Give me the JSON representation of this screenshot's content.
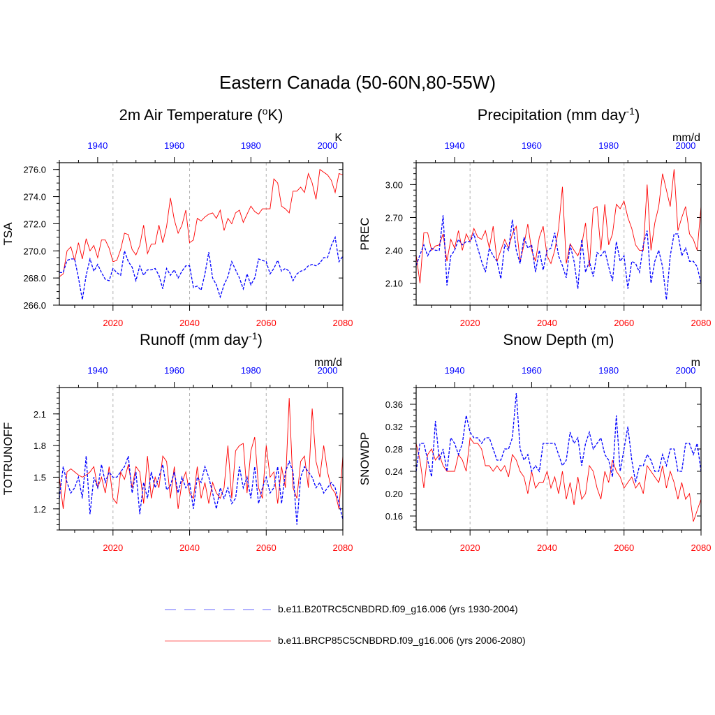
{
  "page": {
    "title": "Eastern Canada (50-60N,80-55W)",
    "colors": {
      "rcp": "#ff0000",
      "hist": "#0000ff",
      "grid": "#aaaaaa",
      "axis": "#000000"
    }
  },
  "legend": {
    "hist_label": "b.e11.B20TRC5CNBDRD.f09_g16.006 (yrs 1930-2004)",
    "rcp_label": "b.e11.BRCP85C5CNBDRD.f09_g16.006 (yrs 2006-2080)"
  },
  "chart_data": [
    {
      "id": "tsa",
      "type": "line",
      "title": "2m Air Temperature (",
      "title_sup": "o",
      "title_tail": "K)",
      "ylabel": "TSA",
      "units": "K",
      "ylim": [
        266.0,
        276.5
      ],
      "yticks": [
        266,
        268,
        270,
        272,
        274,
        276
      ],
      "ytick_labels": [
        "266.0",
        "268.0",
        "270.0",
        "272.0",
        "274.0",
        "276.0"
      ],
      "minor_step": 0.5,
      "x_bottom": {
        "lim": [
          2006,
          2080
        ],
        "ticks": [
          2020,
          2040,
          2060,
          2080
        ]
      },
      "x_top": {
        "lim": [
          1930,
          2004
        ],
        "ticks": [
          1940,
          1960,
          1980,
          2000
        ]
      },
      "series": [
        {
          "name": "b.e11.BRCP85C5CNBDRD.f09_g16.006",
          "color": "#ff0000",
          "dash": "",
          "start": 2006,
          "values": [
            268.1,
            268.3,
            270.0,
            270.3,
            269.3,
            270.6,
            269.4,
            270.9,
            270.0,
            270.4,
            269.5,
            270.8,
            270.8,
            270.2,
            269.2,
            269.3,
            270.1,
            271.3,
            271.2,
            270.1,
            269.7,
            270.4,
            271.9,
            269.8,
            270.5,
            270.5,
            271.9,
            270.6,
            271.8,
            273.9,
            272.3,
            271.3,
            271.9,
            273.0,
            270.6,
            270.8,
            272.4,
            272.2,
            272.5,
            272.7,
            272.8,
            272.4,
            273.0,
            271.5,
            272.4,
            272.0,
            272.8,
            273.0,
            272.1,
            272.7,
            273.3,
            272.9,
            272.7,
            273.1,
            273.1,
            273.1,
            275.3,
            275.0,
            273.3,
            273.1,
            272.8,
            274.4,
            274.4,
            274.7,
            274.3,
            275.7,
            275.0,
            273.8,
            276.0,
            275.8,
            275.6,
            275.2,
            274.3,
            275.7,
            275.6
          ]
        },
        {
          "name": "b.e11.B20TRC5CNBDRD.f09_g16.006",
          "color": "#0000ff",
          "dash": "4,2",
          "start": 1930,
          "values": [
            268.4,
            268.4,
            269.3,
            269.4,
            269.4,
            268.0,
            266.4,
            268.2,
            269.4,
            268.5,
            269.0,
            268.4,
            267.9,
            267.8,
            268.7,
            268.4,
            268.2,
            270.0,
            269.2,
            268.8,
            267.8,
            268.9,
            268.2,
            268.6,
            268.6,
            268.7,
            268.2,
            267.2,
            268.7,
            268.2,
            268.6,
            268.0,
            268.5,
            268.9,
            268.9,
            267.3,
            267.4,
            267.1,
            268.3,
            269.9,
            268.0,
            267.5,
            266.6,
            267.5,
            268.1,
            269.2,
            268.6,
            268.0,
            267.2,
            268.3,
            267.5,
            268.0,
            269.4,
            269.3,
            269.2,
            268.3,
            268.7,
            269.3,
            268.5,
            268.7,
            268.5,
            267.8,
            268.3,
            268.5,
            268.6,
            268.9,
            269.0,
            268.9,
            269.1,
            269.5,
            269.5,
            270.4,
            271.0,
            269.2,
            269.6
          ]
        }
      ]
    },
    {
      "id": "prec",
      "type": "line",
      "title": "Precipitation (mm day",
      "title_sup": "-1",
      "title_tail": ")",
      "ylabel": "PREC",
      "units": "mm/d",
      "ylim": [
        1.9,
        3.2
      ],
      "yticks": [
        2.1,
        2.4,
        2.7,
        3.0
      ],
      "ytick_labels": [
        "2.10",
        "2.40",
        "2.70",
        "3.00"
      ],
      "minor_step": 0.05,
      "x_bottom": {
        "lim": [
          2006,
          2080
        ],
        "ticks": [
          2020,
          2040,
          2060,
          2080
        ]
      },
      "x_top": {
        "lim": [
          1930,
          2004
        ],
        "ticks": [
          1940,
          1960,
          1980,
          2000
        ]
      },
      "series": [
        {
          "name": "b.e11.BRCP85C5CNBDRD.f09_g16.006",
          "color": "#ff0000",
          "dash": "",
          "start": 2006,
          "values": [
            2.36,
            2.1,
            2.56,
            2.56,
            2.4,
            2.44,
            2.45,
            2.55,
            2.3,
            2.5,
            2.42,
            2.58,
            2.4,
            2.55,
            2.48,
            2.6,
            2.52,
            2.5,
            2.58,
            2.42,
            2.62,
            2.3,
            2.4,
            2.5,
            2.42,
            2.55,
            2.62,
            2.3,
            2.45,
            2.64,
            2.4,
            2.3,
            2.52,
            2.62,
            2.35,
            2.28,
            2.4,
            2.6,
            2.98,
            2.28,
            2.46,
            2.4,
            2.35,
            2.45,
            2.65,
            2.25,
            2.78,
            2.8,
            2.4,
            2.82,
            2.45,
            2.55,
            2.82,
            2.78,
            2.85,
            2.7,
            2.6,
            2.45,
            2.4,
            2.4,
            3.0,
            2.4,
            2.65,
            2.8,
            3.1,
            2.95,
            2.8,
            3.14,
            2.58,
            2.7,
            2.8,
            2.55,
            2.5,
            2.4,
            2.8
          ]
        },
        {
          "name": "b.e11.B20TRC5CNBDRD.f09_g16.006",
          "color": "#0000ff",
          "dash": "4,2",
          "start": 1930,
          "values": [
            2.26,
            2.36,
            2.45,
            2.35,
            2.42,
            2.4,
            2.4,
            2.72,
            2.08,
            2.35,
            2.4,
            2.5,
            2.45,
            2.48,
            2.48,
            2.55,
            2.42,
            2.3,
            2.2,
            2.42,
            2.35,
            2.3,
            2.14,
            2.45,
            2.4,
            2.68,
            2.4,
            2.28,
            2.52,
            2.42,
            2.45,
            2.2,
            2.4,
            2.22,
            2.4,
            2.42,
            2.56,
            2.35,
            2.26,
            2.15,
            2.45,
            2.3,
            2.05,
            2.5,
            2.2,
            2.3,
            2.16,
            2.38,
            2.35,
            2.4,
            2.25,
            2.12,
            2.48,
            2.3,
            2.35,
            2.05,
            2.3,
            2.28,
            2.2,
            2.45,
            2.58,
            2.1,
            2.3,
            2.4,
            2.25,
            1.95,
            2.35,
            2.55,
            2.55,
            2.35,
            2.42,
            2.3,
            2.3,
            2.25,
            2.1
          ]
        }
      ]
    },
    {
      "id": "runoff",
      "type": "line",
      "title": "Runoff (mm day",
      "title_sup": "-1",
      "title_tail": ")",
      "ylabel": "TOTRUNOFF",
      "units": "mm/d",
      "ylim": [
        1.0,
        2.35
      ],
      "yticks": [
        1.2,
        1.5,
        1.8,
        2.1
      ],
      "ytick_labels": [
        "1.2",
        "1.5",
        "1.8",
        "2.1"
      ],
      "minor_step": 0.05,
      "x_bottom": {
        "lim": [
          2006,
          2080
        ],
        "ticks": [
          2020,
          2040,
          2060,
          2080
        ]
      },
      "x_top": {
        "lim": [
          1930,
          2004
        ],
        "ticks": [
          1940,
          1960,
          1980,
          2000
        ]
      },
      "series": [
        {
          "name": "b.e11.BRCP85C5CNBDRD.f09_g16.006",
          "color": "#ff0000",
          "dash": "",
          "start": 2006,
          "values": [
            1.5,
            1.2,
            1.55,
            1.58,
            1.55,
            1.52,
            1.5,
            1.52,
            1.55,
            1.6,
            1.4,
            1.5,
            1.35,
            1.6,
            1.3,
            1.25,
            1.55,
            1.48,
            1.62,
            1.4,
            1.6,
            1.55,
            1.25,
            1.7,
            1.3,
            1.5,
            1.4,
            1.7,
            1.65,
            1.3,
            1.6,
            1.2,
            1.45,
            1.55,
            1.35,
            1.3,
            1.6,
            1.3,
            1.45,
            1.25,
            1.45,
            1.35,
            1.3,
            1.4,
            1.8,
            1.3,
            1.75,
            1.8,
            1.82,
            1.35,
            1.75,
            1.88,
            1.4,
            1.3,
            1.8,
            1.5,
            1.55,
            1.25,
            1.6,
            1.4,
            2.25,
            1.4,
            1.3,
            1.65,
            1.7,
            1.4,
            2.15,
            1.65,
            1.5,
            1.8,
            1.55,
            1.4,
            1.35,
            1.2,
            1.7
          ]
        },
        {
          "name": "b.e11.B20TRC5CNBDRD.f09_g16.006",
          "color": "#0000ff",
          "dash": "4,2",
          "start": 1930,
          "values": [
            1.3,
            1.6,
            1.45,
            1.35,
            1.4,
            1.5,
            1.3,
            1.7,
            1.15,
            1.5,
            1.4,
            1.62,
            1.45,
            1.55,
            1.5,
            1.5,
            1.55,
            1.6,
            1.7,
            1.35,
            1.55,
            1.15,
            1.45,
            1.3,
            1.55,
            1.4,
            1.5,
            1.62,
            1.38,
            1.42,
            1.55,
            1.35,
            1.5,
            1.4,
            1.45,
            1.2,
            1.5,
            1.45,
            1.6,
            1.5,
            1.35,
            1.2,
            1.4,
            1.3,
            1.4,
            1.25,
            1.3,
            1.6,
            1.4,
            1.5,
            1.3,
            1.6,
            1.25,
            1.4,
            1.5,
            1.35,
            1.4,
            1.6,
            1.25,
            1.55,
            1.65,
            1.55,
            1.05,
            1.5,
            1.6,
            1.55,
            1.5,
            1.4,
            1.45,
            1.35,
            1.4,
            1.45,
            1.4,
            1.25,
            1.1
          ]
        }
      ]
    },
    {
      "id": "snowdp",
      "type": "line",
      "title": "Snow Depth (m)",
      "title_sup": "",
      "title_tail": "",
      "ylabel": "SNOWDP",
      "units": "m",
      "ylim": [
        0.135,
        0.39
      ],
      "yticks": [
        0.16,
        0.2,
        0.24,
        0.28,
        0.32,
        0.36
      ],
      "ytick_labels": [
        "0.16",
        "0.20",
        "0.24",
        "0.28",
        "0.32",
        "0.36"
      ],
      "minor_step": 0.01,
      "x_bottom": {
        "lim": [
          2006,
          2080
        ],
        "ticks": [
          2020,
          2040,
          2060,
          2080
        ]
      },
      "x_top": {
        "lim": [
          1930,
          2004
        ],
        "ticks": [
          1940,
          1960,
          1980,
          2000
        ]
      },
      "series": [
        {
          "name": "b.e11.BRCP85C5CNBDRD.f09_g16.006",
          "color": "#ff0000",
          "dash": "",
          "start": 2006,
          "values": [
            0.29,
            0.26,
            0.21,
            0.27,
            0.28,
            0.26,
            0.27,
            0.25,
            0.24,
            0.24,
            0.24,
            0.27,
            0.26,
            0.24,
            0.3,
            0.29,
            0.29,
            0.28,
            0.25,
            0.25,
            0.24,
            0.25,
            0.24,
            0.25,
            0.23,
            0.27,
            0.26,
            0.24,
            0.23,
            0.2,
            0.24,
            0.21,
            0.22,
            0.22,
            0.24,
            0.21,
            0.23,
            0.2,
            0.24,
            0.19,
            0.22,
            0.18,
            0.23,
            0.19,
            0.2,
            0.25,
            0.24,
            0.21,
            0.19,
            0.24,
            0.22,
            0.26,
            0.24,
            0.23,
            0.21,
            0.22,
            0.23,
            0.21,
            0.22,
            0.2,
            0.25,
            0.24,
            0.23,
            0.22,
            0.25,
            0.21,
            0.24,
            0.22,
            0.19,
            0.22,
            0.19,
            0.2,
            0.15,
            0.17,
            0.19
          ]
        },
        {
          "name": "b.e11.B20TRC5CNBDRD.f09_g16.006",
          "color": "#0000ff",
          "dash": "4,2",
          "start": 1930,
          "values": [
            0.24,
            0.29,
            0.29,
            0.26,
            0.23,
            0.33,
            0.26,
            0.28,
            0.24,
            0.3,
            0.29,
            0.27,
            0.29,
            0.34,
            0.31,
            0.3,
            0.3,
            0.29,
            0.3,
            0.3,
            0.28,
            0.26,
            0.26,
            0.28,
            0.28,
            0.3,
            0.38,
            0.28,
            0.26,
            0.27,
            0.24,
            0.25,
            0.24,
            0.29,
            0.29,
            0.29,
            0.29,
            0.27,
            0.25,
            0.26,
            0.31,
            0.29,
            0.3,
            0.25,
            0.29,
            0.31,
            0.28,
            0.29,
            0.3,
            0.27,
            0.26,
            0.23,
            0.34,
            0.24,
            0.28,
            0.32,
            0.26,
            0.22,
            0.25,
            0.25,
            0.27,
            0.26,
            0.24,
            0.24,
            0.27,
            0.25,
            0.28,
            0.28,
            0.24,
            0.24,
            0.29,
            0.29,
            0.27,
            0.29,
            0.24
          ]
        }
      ]
    }
  ]
}
